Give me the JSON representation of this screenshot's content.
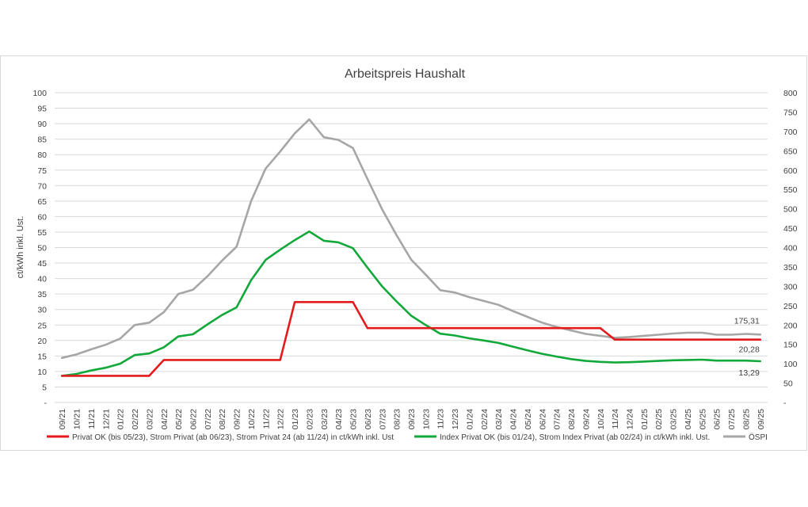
{
  "chart_data": {
    "type": "line",
    "title": "Arbeitspreis Haushalt",
    "ylabel": "ct/kWh inkl. Ust.",
    "ylim": [
      0,
      100
    ],
    "y2lim": [
      0,
      800
    ],
    "yticks": [
      "-",
      "5",
      "10",
      "15",
      "20",
      "25",
      "30",
      "35",
      "40",
      "45",
      "50",
      "55",
      "60",
      "65",
      "70",
      "75",
      "80",
      "85",
      "90",
      "95",
      "100"
    ],
    "y2ticks": [
      "-",
      "50",
      "100",
      "150",
      "200",
      "250",
      "300",
      "350",
      "400",
      "450",
      "500",
      "550",
      "600",
      "650",
      "700",
      "750",
      "800"
    ],
    "legend_position": "bottom",
    "grid": true,
    "categories": [
      "09/21",
      "10/21",
      "11/21",
      "12/21",
      "01/22",
      "02/22",
      "03/22",
      "04/22",
      "05/22",
      "06/22",
      "07/22",
      "08/22",
      "09/22",
      "10/22",
      "11/22",
      "12/22",
      "01/23",
      "02/23",
      "03/23",
      "04/23",
      "05/23",
      "06/23",
      "07/23",
      "08/23",
      "09/23",
      "10/23",
      "11/23",
      "12/23",
      "01/24",
      "02/24",
      "03/24",
      "04/24",
      "05/24",
      "06/24",
      "07/24",
      "08/24",
      "09/24",
      "10/24",
      "11/24",
      "12/24",
      "01/25",
      "02/25",
      "03/25",
      "04/25",
      "05/25",
      "06/25",
      "07/25",
      "08/25",
      "09/25"
    ],
    "series": [
      {
        "name": "Privat OK (bis 05/23), Strom Privat (ab 06/23), Strom Privat 24 (ab 11/24) in ct/kWh inkl. Ust",
        "axis": "left",
        "color": "#e41a1c",
        "values": [
          8.6,
          8.6,
          8.6,
          8.6,
          8.6,
          8.6,
          8.6,
          13.7,
          13.7,
          13.7,
          13.7,
          13.7,
          13.7,
          13.7,
          13.7,
          13.7,
          32.4,
          32.4,
          32.4,
          32.4,
          32.4,
          24.0,
          24.0,
          24.0,
          24.0,
          24.0,
          24.0,
          24.0,
          24.0,
          24.0,
          24.0,
          24.0,
          24.0,
          24.0,
          24.0,
          24.0,
          24.0,
          24.0,
          20.28,
          20.28,
          20.28,
          20.28,
          20.28,
          20.28,
          20.28,
          20.28,
          20.28,
          20.28,
          20.28
        ]
      },
      {
        "name": "Index Privat OK (bis 01/24), Strom Index Privat (ab 02/24) in ct/kWh inkl. Ust.",
        "axis": "left",
        "color": "#12a83a",
        "values": [
          8.6,
          9.2,
          10.3,
          11.2,
          12.5,
          15.3,
          15.8,
          17.8,
          21.3,
          22.0,
          25.2,
          28.2,
          30.7,
          39.5,
          46.0,
          49.3,
          52.4,
          55.2,
          52.2,
          51.7,
          49.8,
          43.5,
          37.5,
          32.6,
          28.0,
          25.0,
          22.2,
          21.6,
          20.7,
          20.0,
          19.2,
          18.0,
          16.8,
          15.7,
          14.8,
          14.0,
          13.4,
          13.1,
          12.9,
          13.0,
          13.2,
          13.4,
          13.6,
          13.7,
          13.8,
          13.5,
          13.5,
          13.5,
          13.29
        ]
      },
      {
        "name": "ÖSPI",
        "axis": "right",
        "color": "#a6a6a6",
        "values": [
          115,
          124,
          137,
          149,
          165,
          200,
          206,
          233,
          280,
          291,
          326,
          366,
          402,
          520,
          604,
          648,
          695,
          731,
          685,
          678,
          657,
          577,
          499,
          432,
          369,
          330,
          290,
          284,
          272,
          262,
          252,
          236,
          221,
          206,
          195,
          186,
          177,
          172,
          167,
          169,
          172,
          175,
          178,
          180,
          180,
          175,
          175,
          177,
          175.31
        ]
      }
    ],
    "end_labels": [
      "175,31",
      "20,28",
      "13,29"
    ]
  }
}
